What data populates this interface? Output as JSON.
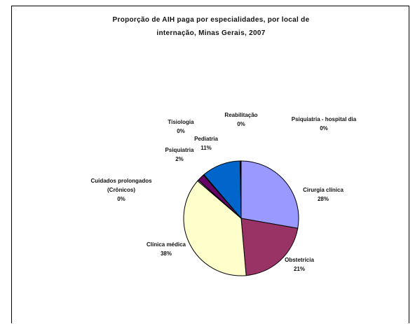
{
  "chart_data": {
    "type": "pie",
    "title_line1": "Proporção de AIH paga por especialidades, por local de",
    "title_line2": "internação, Minas Gerais, 2007",
    "slices": [
      {
        "label": "Cirurgia clínica",
        "label_line1": "Cirurgia clínica",
        "label_line2": "",
        "value_label": "28%",
        "value": 28,
        "color": "#9999ff"
      },
      {
        "label": "Obstetrícia",
        "label_line1": "Obstetrícia",
        "label_line2": "",
        "value_label": "21%",
        "value": 21,
        "color": "#993366"
      },
      {
        "label": "Clínica médica",
        "label_line1": "Clínica médica",
        "label_line2": "",
        "value_label": "38%",
        "value": 38,
        "color": "#ffffcc"
      },
      {
        "label": "Cuidados prolongados (Crônicos)",
        "label_line1": "Cuidados prolongados",
        "label_line2": "(Crônicos)",
        "value_label": "0%",
        "value": 0.3,
        "color": "#ccffff"
      },
      {
        "label": "Psiquiatria",
        "label_line1": "Psiquiatria",
        "label_line2": "",
        "value_label": "2%",
        "value": 2,
        "color": "#660066"
      },
      {
        "label": "Tisiologia",
        "label_line1": "Tisiologia",
        "label_line2": "",
        "value_label": "0%",
        "value": 0.2,
        "color": "#ff8080"
      },
      {
        "label": "Pediatria",
        "label_line1": "Pediatria",
        "label_line2": "",
        "value_label": "11%",
        "value": 11,
        "color": "#0066cc"
      },
      {
        "label": "Reabilitação",
        "label_line1": "Reabilitação",
        "label_line2": "",
        "value_label": "0%",
        "value": 0.2,
        "color": "#ccccff"
      },
      {
        "label": "Psiquiatria - hospital dia",
        "label_line1": "Psiquiatria - hospital dia",
        "label_line2": "",
        "value_label": "0%",
        "value": 0.1,
        "color": "#000080"
      }
    ]
  }
}
